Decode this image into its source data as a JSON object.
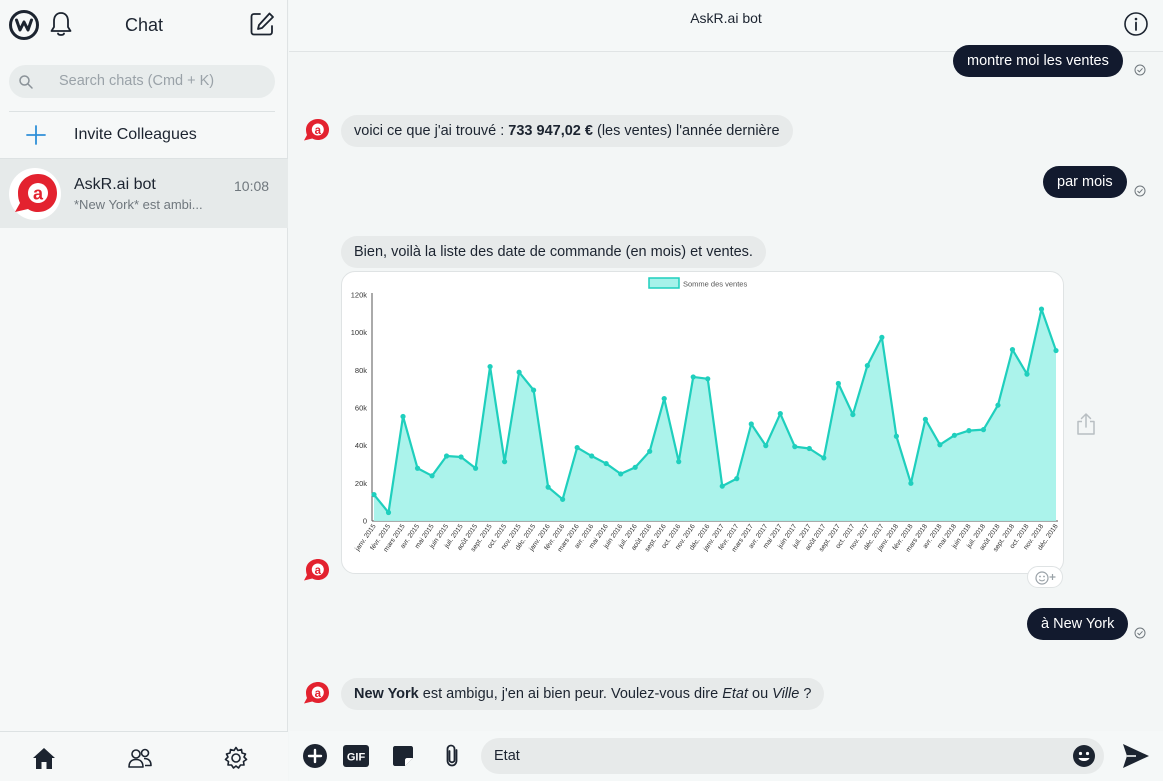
{
  "sidebar": {
    "title": "Chat",
    "search_placeholder": "Search chats  (Cmd + K)",
    "invite_label": "Invite Colleagues",
    "chats": [
      {
        "name": "AskR.ai bot",
        "time": "10:08",
        "preview": "*New York* est ambi..."
      }
    ]
  },
  "header": {
    "title": "AskR.ai bot"
  },
  "messages": {
    "m1": "montre moi les ventes",
    "m2_prefix": "voici ce que j'ai trouvé : ",
    "m2_bold": "733 947,02 €",
    "m2_suffix": " (les ventes) l'année dernière",
    "m3": "par mois",
    "m4": "Bien, voilà la liste des date de commande (en mois) et ventes.",
    "m5": "à New York",
    "m6_bold": "New York",
    "m6_text1": " est ambigu, j'en ai bien peur. Voulez-vous dire ",
    "m6_italic1": "Etat",
    "m6_text2": " ou ",
    "m6_italic2": "Ville",
    "m6_text3": " ?"
  },
  "composer": {
    "value": "Etat"
  },
  "icons": {
    "logo": "workplace-logo-icon",
    "bell": "bell-icon",
    "compose": "compose-icon",
    "search": "search-icon",
    "plus": "plus-icon",
    "home": "home-icon",
    "people": "people-icon",
    "settings": "gear-icon",
    "info": "info-icon",
    "share": "share-icon",
    "add": "add-circle-icon",
    "gif": "gif-icon",
    "sticker": "sticker-icon",
    "attach": "paperclip-icon",
    "emoji": "emoji-icon",
    "send": "send-icon"
  },
  "colors": {
    "accent": "#1fcfbd",
    "fill": "#a6f2ea",
    "dark_bubble": "#121a2e",
    "bot_red": "#e3222f"
  },
  "chart_data": {
    "type": "area",
    "legend": "Somme des ventes",
    "legend_position": "top-center",
    "ylim": [
      0,
      120000
    ],
    "yticks": [
      "0",
      "20k",
      "40k",
      "60k",
      "80k",
      "100k",
      "120k"
    ],
    "grid": false,
    "categories": [
      "janv. 2015",
      "févr. 2015",
      "mars 2015",
      "avr. 2015",
      "mai 2015",
      "juin 2015",
      "juil. 2015",
      "août 2015",
      "sept. 2015",
      "oct. 2015",
      "nov. 2015",
      "déc. 2015",
      "janv. 2016",
      "févr. 2016",
      "mars 2016",
      "avr. 2016",
      "mai 2016",
      "juin 2016",
      "juil. 2016",
      "août 2016",
      "sept. 2016",
      "oct. 2016",
      "nov. 2016",
      "déc. 2016",
      "janv. 2017",
      "févr. 2017",
      "mars 2017",
      "avr. 2017",
      "mai 2017",
      "juin 2017",
      "juil. 2017",
      "août 2017",
      "sept. 2017",
      "oct. 2017",
      "nov. 2017",
      "déc. 2017",
      "janv. 2018",
      "févr. 2018",
      "mars 2018",
      "avr. 2018",
      "mai 2018",
      "juin 2018",
      "juil. 2018",
      "août 2018",
      "sept. 2018",
      "oct. 2018",
      "nov. 2018",
      "déc. 2018"
    ],
    "values": [
      14000,
      4500,
      55500,
      28000,
      24000,
      34500,
      34000,
      28000,
      82000,
      31500,
      79000,
      69500,
      18000,
      11500,
      39000,
      34500,
      30500,
      25000,
      28500,
      37000,
      65000,
      31500,
      76500,
      75500,
      18500,
      22500,
      51500,
      40000,
      57000,
      39500,
      38500,
      33500,
      73000,
      56500,
      82500,
      97500,
      45000,
      20000,
      54000,
      40500,
      45500,
      48000,
      48500,
      61500,
      91000,
      78000,
      112500,
      90500
    ]
  }
}
